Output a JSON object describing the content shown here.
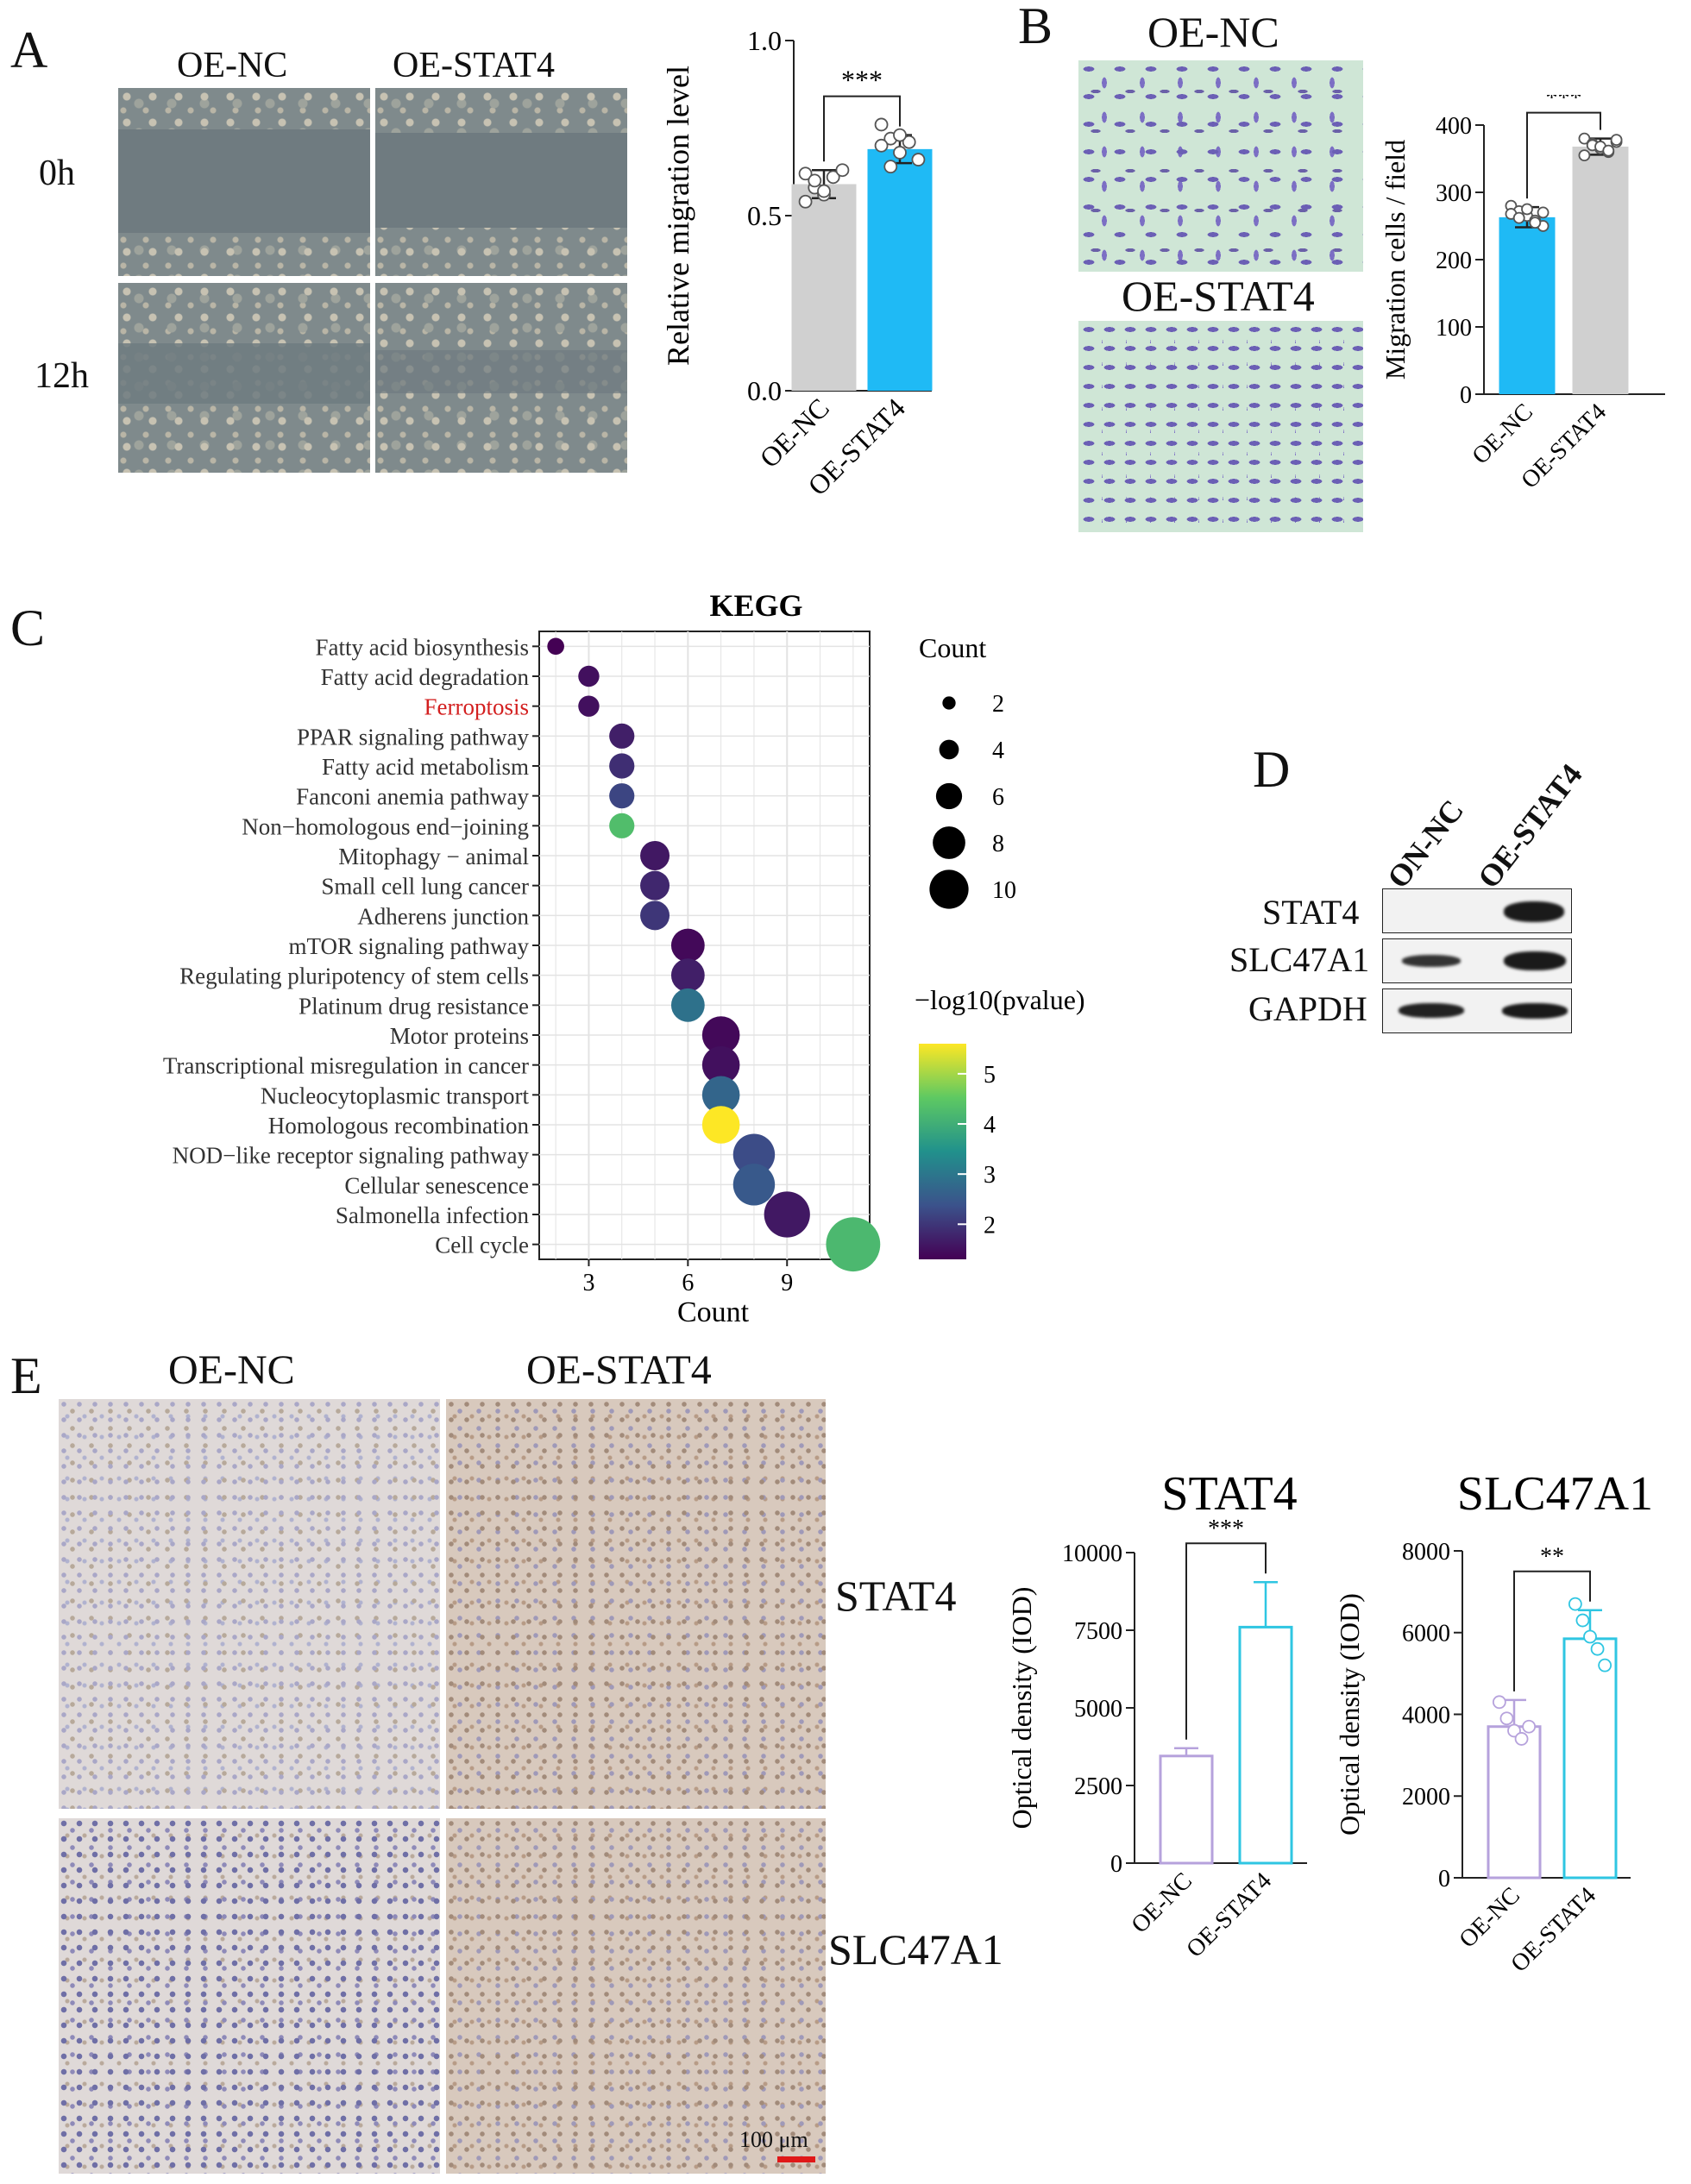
{
  "panels": {
    "A": "A",
    "B": "B",
    "C": "C",
    "D": "D",
    "E": "E"
  },
  "panel_a": {
    "col_labels": [
      "OE-NC",
      "OE-STAT4"
    ],
    "row_labels": [
      "0h",
      "12h"
    ],
    "significance": "***"
  },
  "panel_b": {
    "col_labels": [
      "OE-NC",
      "OE-STAT4"
    ],
    "significance": "***"
  },
  "panel_d": {
    "lane_labels": [
      "ON-NC",
      "OE-STAT4"
    ],
    "row_labels": [
      "STAT4",
      "SLC47A1",
      "GAPDH"
    ]
  },
  "panel_e": {
    "col_labels": [
      "OE-NC",
      "OE-STAT4"
    ],
    "row_labels": [
      "STAT4",
      "SLC47A1"
    ],
    "scale_bar": "100 μm"
  },
  "colors": {
    "gray": "#d0d0d0",
    "blue": "#1fbaf5",
    "lavender": "#b6a2dc",
    "cyan": "#2fc6e2",
    "scale": "#e01818"
  },
  "chart_data": [
    {
      "id": "A",
      "type": "bar",
      "categories": [
        "OE-NC",
        "OE-STAT4"
      ],
      "values": [
        0.59,
        0.69
      ],
      "errors": [
        0.04,
        0.04
      ],
      "points": [
        [
          0.62,
          0.58,
          0.56,
          0.61,
          0.63,
          0.54,
          0.6,
          0.57
        ],
        [
          0.76,
          0.72,
          0.68,
          0.71,
          0.66,
          0.7,
          0.64,
          0.73
        ]
      ],
      "bar_colors": [
        "#d0d0d0",
        "#1fbaf5"
      ],
      "ylabel": "Relative migration level",
      "ylim": [
        0,
        1.0
      ],
      "yticks": [
        0.0,
        0.5,
        1.0
      ],
      "ytick_labels": [
        "0.0",
        "0.5",
        "1.0"
      ],
      "significance": "***"
    },
    {
      "id": "B",
      "type": "bar",
      "categories": [
        "OE-NC",
        "OE-STAT4"
      ],
      "values": [
        263,
        368
      ],
      "errors": [
        15,
        12
      ],
      "points": [
        [
          280,
          272,
          265,
          258,
          250,
          268,
          262,
          275,
          255,
          270
        ],
        [
          380,
          372,
          365,
          360,
          375,
          355,
          370,
          368,
          362,
          378
        ]
      ],
      "bar_colors": [
        "#1fbaf5",
        "#d0d0d0"
      ],
      "ylabel": "Migration cells / field",
      "ylim": [
        0,
        400
      ],
      "yticks": [
        0,
        100,
        200,
        300,
        400
      ],
      "ytick_labels": [
        "0",
        "100",
        "200",
        "300",
        "400"
      ],
      "significance": "***"
    },
    {
      "id": "C",
      "type": "scatter",
      "title": "KEGG",
      "xlabel": "Count",
      "xticks": [
        3,
        6,
        9
      ],
      "xlim": [
        1.5,
        11.5
      ],
      "categories": [
        "Fatty acid biosynthesis",
        "Fatty acid degradation",
        "Ferroptosis",
        "PPAR signaling pathway",
        "Fatty acid metabolism",
        "Fanconi anemia pathway",
        "Non−homologous end−joining",
        "Mitophagy − animal",
        "Small cell lung cancer",
        "Adherens junction",
        "mTOR signaling pathway",
        "Regulating pluripotency of stem cells",
        "Platinum drug resistance",
        "Motor proteins",
        "Transcriptional misregulation in cancer",
        "Nucleocytoplasmic transport",
        "Homologous recombination",
        "NOD−like receptor signaling pathway",
        "Cellular senescence",
        "Salmonella infection",
        "Cell cycle"
      ],
      "highlight": "Ferroptosis",
      "counts": [
        2,
        3,
        3,
        4,
        4,
        4,
        4,
        5,
        5,
        5,
        6,
        6,
        6,
        7,
        7,
        7,
        7,
        8,
        8,
        9,
        11
      ],
      "neglog10p": [
        1.3,
        1.5,
        1.5,
        1.7,
        1.9,
        2.2,
        4.3,
        1.6,
        1.8,
        2.0,
        1.4,
        1.7,
        2.9,
        1.4,
        1.5,
        2.7,
        5.6,
        2.3,
        2.5,
        1.6,
        4.2
      ],
      "size_legend_title": "Count",
      "size_legend": [
        2,
        4,
        6,
        8,
        10
      ],
      "color_legend_title": "−log10(pvalue)",
      "color_ticks": [
        2,
        3,
        4,
        5
      ],
      "color_range": [
        1.3,
        5.6
      ]
    },
    {
      "id": "E1",
      "type": "bar",
      "title": "STAT4",
      "categories": [
        "OE-NC",
        "OE-STAT4"
      ],
      "values": [
        3450,
        7600
      ],
      "errors": [
        250,
        1450
      ],
      "points": [
        [],
        []
      ],
      "bar_colors": [
        "#b6a2dc",
        "#2fc6e2"
      ],
      "open_bars": true,
      "ylabel": "Optical density (IOD)",
      "ylim": [
        0,
        10000
      ],
      "yticks": [
        0,
        2500,
        5000,
        7500,
        10000
      ],
      "ytick_labels": [
        "0",
        "2500",
        "5000",
        "7500",
        "10000"
      ],
      "significance": "***"
    },
    {
      "id": "E2",
      "type": "bar",
      "title": "SLC47A1",
      "categories": [
        "OE-NC",
        "OE-STAT4"
      ],
      "values": [
        3700,
        5850
      ],
      "errors": [
        650,
        700
      ],
      "points": [
        [
          4300,
          3900,
          3600,
          3400,
          3700
        ],
        [
          6700,
          6300,
          5900,
          5600,
          5200
        ]
      ],
      "bar_colors": [
        "#b6a2dc",
        "#2fc6e2"
      ],
      "open_bars": true,
      "ylabel": "Optical density (IOD)",
      "ylim": [
        0,
        8000
      ],
      "yticks": [
        0,
        2000,
        4000,
        6000,
        8000
      ],
      "ytick_labels": [
        "0",
        "2000",
        "4000",
        "6000",
        "8000"
      ],
      "significance": "**"
    }
  ]
}
